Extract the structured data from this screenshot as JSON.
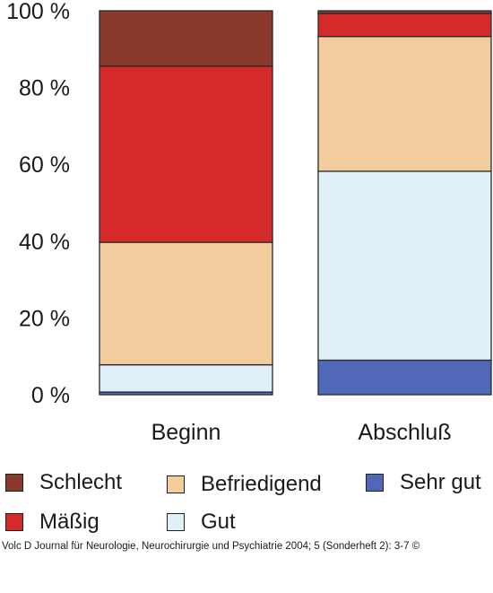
{
  "chart_data": {
    "type": "bar",
    "stacked": true,
    "categories": [
      "Beginn",
      "Abschluß"
    ],
    "series": [
      {
        "name": "Sehr gut",
        "color": "#5068b8",
        "values": [
          0.7,
          9.0
        ]
      },
      {
        "name": "Gut",
        "color": "#dff0f8",
        "values": [
          7.1,
          49.2
        ]
      },
      {
        "name": "Befriedigend",
        "color": "#f2cc9c",
        "values": [
          31.9,
          35.1
        ]
      },
      {
        "name": "Mäßig",
        "color": "#d52a2a",
        "values": [
          45.9,
          6.0
        ]
      },
      {
        "name": "Schlecht",
        "color": "#8a3a2c",
        "values": [
          14.4,
          0.7
        ]
      }
    ],
    "yticks": [
      "0 %",
      "20 %",
      "40 %",
      "60 %",
      "80 %",
      "100 %"
    ],
    "ylim": [
      0,
      100
    ],
    "grid": false,
    "legend_position": "bottom"
  },
  "legend": [
    {
      "label": "Schlecht",
      "color": "#8a3a2c",
      "icon": "schlecht-swatch-icon"
    },
    {
      "label": "Befriedigend",
      "color": "#f2cc9c",
      "icon": "befriedigend-swatch-icon"
    },
    {
      "label": "Sehr gut",
      "color": "#5068b8",
      "icon": "sehr-gut-swatch-icon"
    },
    {
      "label": "Mäßig",
      "color": "#d52a2a",
      "icon": "maessig-swatch-icon"
    },
    {
      "label": "Gut",
      "color": "#dff0f8",
      "icon": "gut-swatch-icon"
    }
  ],
  "credit": "Volc D Journal für Neurologie, Neurochirurgie und Psychiatrie 2004; 5 (Sonderheft 2): 3-7 ©"
}
